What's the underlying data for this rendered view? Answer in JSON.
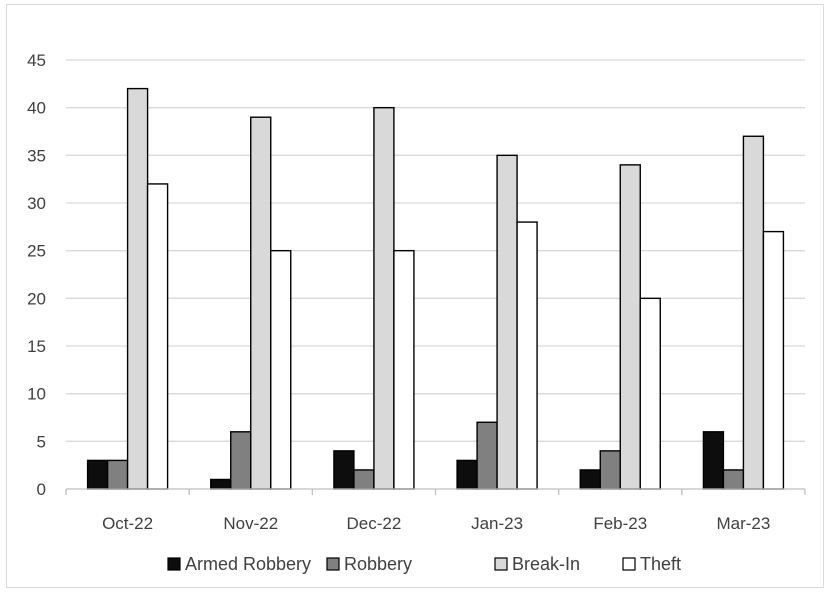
{
  "chart_data": {
    "type": "bar",
    "title": "",
    "xlabel": "",
    "ylabel": "",
    "categories": [
      "Oct-22",
      "Nov-22",
      "Dec-22",
      "Jan-23",
      "Feb-23",
      "Mar-23"
    ],
    "series": [
      {
        "name": "Armed Robbery",
        "values": [
          3,
          1,
          4,
          3,
          2,
          6
        ],
        "color": "#0d0d0d"
      },
      {
        "name": "Robbery",
        "values": [
          3,
          6,
          2,
          7,
          4,
          2
        ],
        "color": "#808080"
      },
      {
        "name": "Break-In",
        "values": [
          42,
          39,
          40,
          35,
          34,
          37
        ],
        "color": "#d9d9d9"
      },
      {
        "name": "Theft",
        "values": [
          32,
          25,
          25,
          28,
          20,
          27
        ],
        "color": "#ffffff"
      }
    ],
    "y_ticks": [
      0,
      5,
      10,
      15,
      20,
      25,
      30,
      35,
      40,
      45
    ],
    "ylim": [
      0,
      45
    ],
    "grid": true,
    "legend_position": "bottom"
  }
}
